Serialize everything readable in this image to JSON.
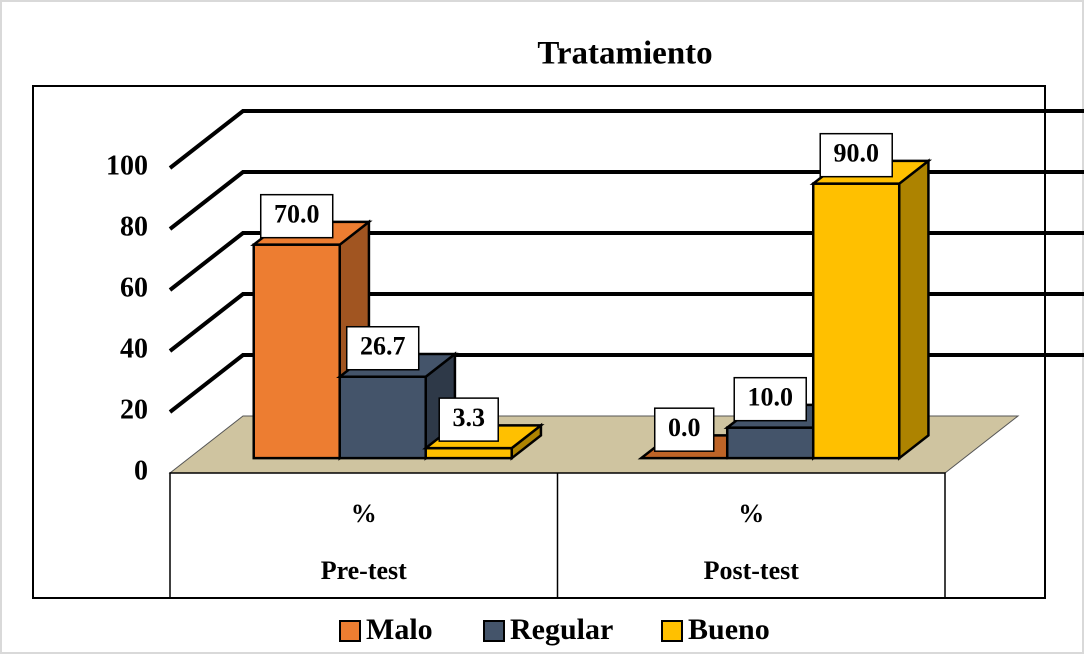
{
  "chart_data": {
    "type": "bar3d",
    "title": "Tratamiento",
    "categories": [
      "Pre-test",
      "Post-test"
    ],
    "category_sublabels": [
      "%",
      "%"
    ],
    "series": [
      {
        "name": "Malo",
        "color": "#ed7d31",
        "values": [
          70.0,
          0.0
        ],
        "value_labels": [
          "70.0",
          "0.0"
        ]
      },
      {
        "name": "Regular",
        "color": "#44546a",
        "values": [
          26.7,
          10.0
        ],
        "value_labels": [
          "26.7",
          "10.0"
        ]
      },
      {
        "name": "Bueno",
        "color": "#ffc000",
        "values": [
          3.3,
          90.0
        ],
        "value_labels": [
          "3.3",
          "90.0"
        ]
      }
    ],
    "ylim": [
      0,
      100
    ],
    "yticks": [
      0,
      20,
      40,
      60,
      80,
      100
    ],
    "grid": true,
    "floor_color": "#cfc4a0"
  }
}
